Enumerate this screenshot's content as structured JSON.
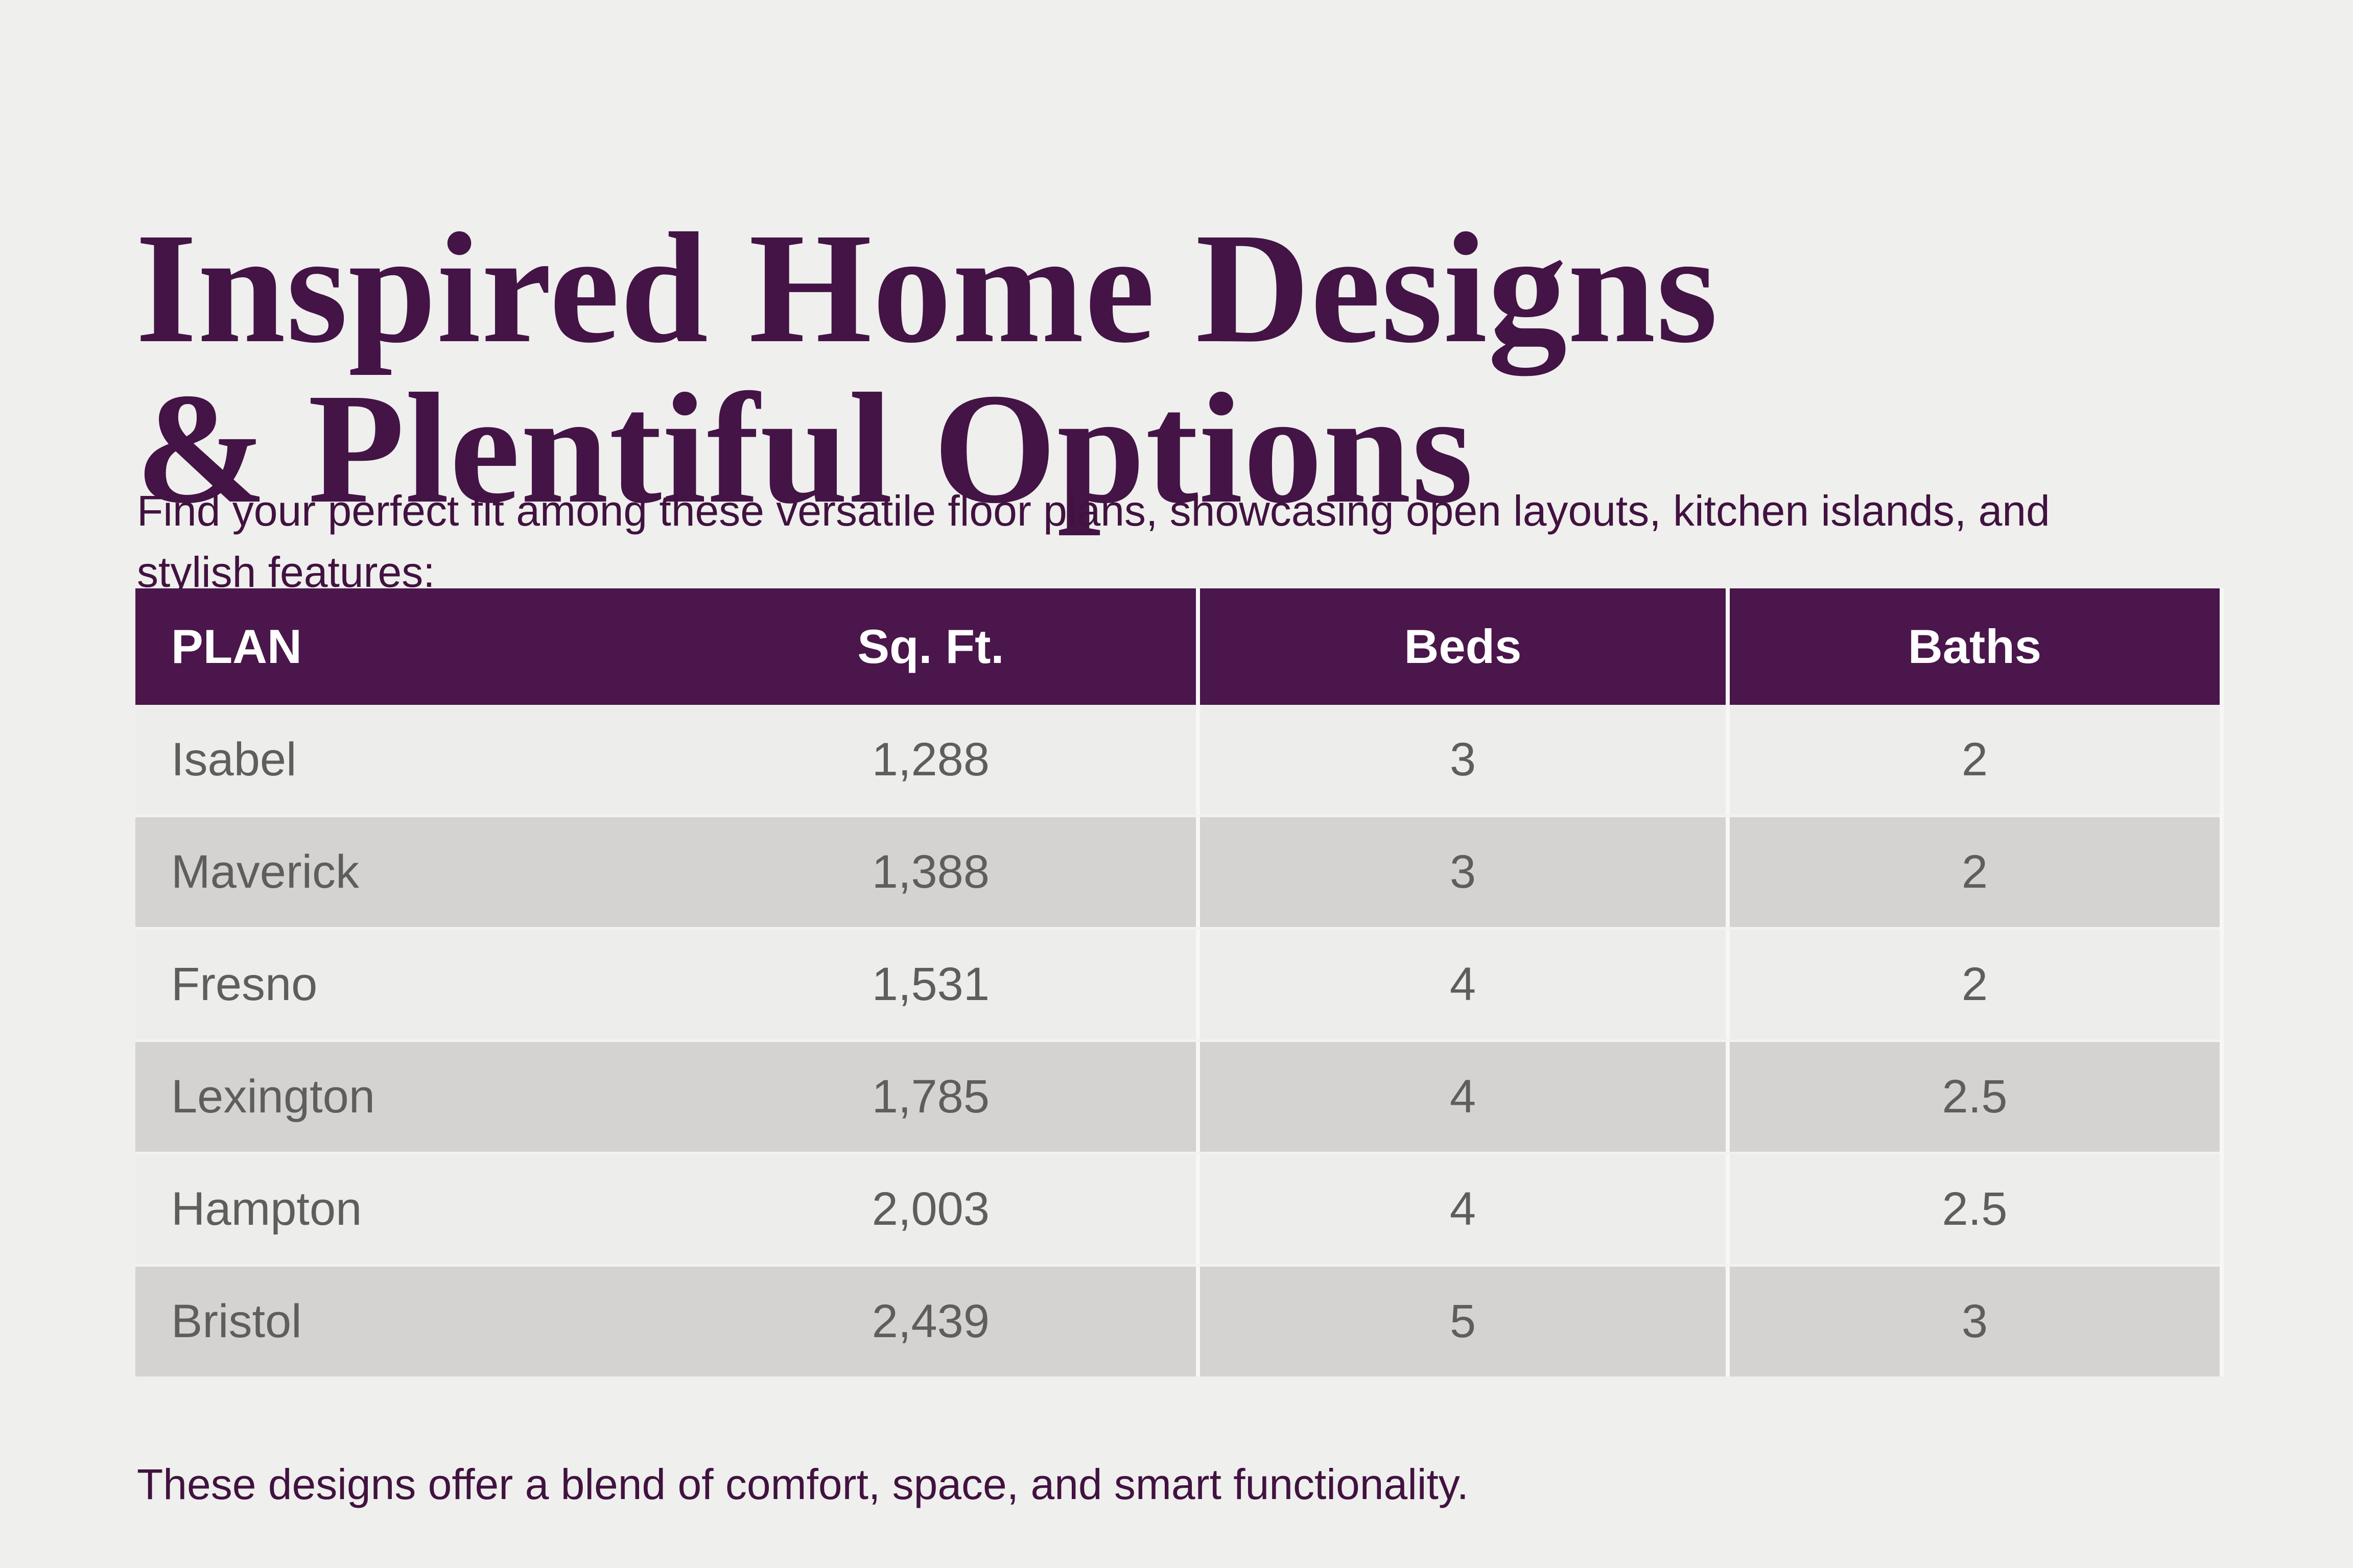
{
  "page": {
    "title_line1": "Inspired Home Designs",
    "title_line2": "& Plentiful Options",
    "subtitle_line1": "Find your perfect fit among these versatile floor plans, showcasing open layouts, kitchen islands, and",
    "subtitle_line2": "stylish features:",
    "footer_note": "These designs offer a blend of comfort, space, and smart functionality."
  },
  "colors": {
    "background": "#efefee",
    "header_background": "#4a164b",
    "title_text": "#431445",
    "body_purple_text": "#41123f",
    "row_dark": "#d4d3d1",
    "row_light": "#ededec",
    "cell_text": "#5e5e5c",
    "header_text": "#ffffff"
  },
  "table": {
    "columns": {
      "plan": "PLAN",
      "sqft": "Sq. Ft.",
      "beds": "Beds",
      "baths": "Baths"
    },
    "rows": [
      {
        "plan": "Isabel",
        "sqft": "1,288",
        "beds": "3",
        "baths": "2"
      },
      {
        "plan": "Maverick",
        "sqft": "1,388",
        "beds": "3",
        "baths": "2"
      },
      {
        "plan": "Fresno",
        "sqft": "1,531",
        "beds": "4",
        "baths": "2"
      },
      {
        "plan": "Lexington",
        "sqft": "1,785",
        "beds": "4",
        "baths": "2.5"
      },
      {
        "plan": "Hampton",
        "sqft": "2,003",
        "beds": "4",
        "baths": "2.5"
      },
      {
        "plan": "Bristol",
        "sqft": "2,439",
        "beds": "5",
        "baths": "3"
      }
    ]
  }
}
